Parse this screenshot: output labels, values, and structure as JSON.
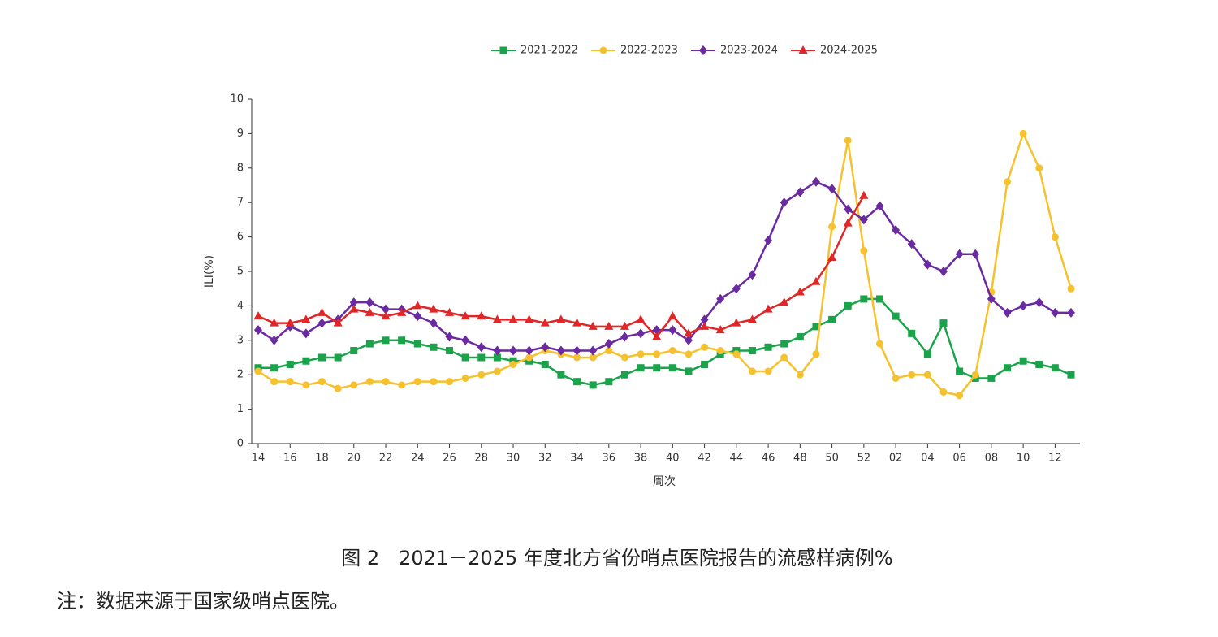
{
  "chart_data": {
    "type": "line",
    "x_label": "周次",
    "y_label": "ILI(%)",
    "categories": [
      "14",
      null,
      "16",
      null,
      "18",
      null,
      "20",
      null,
      "22",
      null,
      "24",
      null,
      "26",
      null,
      "28",
      null,
      "30",
      null,
      "32",
      null,
      "34",
      null,
      "36",
      null,
      "38",
      null,
      "40",
      null,
      "42",
      null,
      "44",
      null,
      "46",
      null,
      "48",
      null,
      "50",
      null,
      "52",
      null,
      "02",
      null,
      "04",
      null,
      "06",
      null,
      "08",
      null,
      "10",
      null,
      "12",
      null
    ],
    "ylim": [
      0,
      10
    ],
    "yticks": [
      0,
      1,
      2,
      3,
      4,
      5,
      6,
      7,
      8,
      9,
      10
    ],
    "grid": false,
    "legend": "top",
    "series": [
      {
        "name": "2021-2022",
        "color": "#1aa34a",
        "marker": "square",
        "values": [
          2.2,
          2.2,
          2.3,
          2.4,
          2.5,
          2.5,
          2.7,
          2.9,
          3.0,
          3.0,
          2.9,
          2.8,
          2.7,
          2.5,
          2.5,
          2.5,
          2.4,
          2.4,
          2.3,
          2.0,
          1.8,
          1.7,
          1.8,
          2.0,
          2.2,
          2.2,
          2.2,
          2.1,
          2.3,
          2.6,
          2.7,
          2.7,
          2.8,
          2.9,
          3.1,
          3.4,
          3.6,
          4.0,
          4.2,
          4.2,
          3.7,
          3.2,
          2.6,
          3.5,
          2.1,
          1.9,
          1.9,
          2.2,
          2.4,
          2.3,
          2.2,
          2.0
        ]
      },
      {
        "name": "2022-2023",
        "color": "#f5c12e",
        "marker": "circle",
        "values": [
          2.1,
          1.8,
          1.8,
          1.7,
          1.8,
          1.6,
          1.7,
          1.8,
          1.8,
          1.7,
          1.8,
          1.8,
          1.8,
          1.9,
          2.0,
          2.1,
          2.3,
          2.5,
          2.7,
          2.6,
          2.5,
          2.5,
          2.7,
          2.5,
          2.6,
          2.6,
          2.7,
          2.6,
          2.8,
          2.7,
          2.6,
          2.1,
          2.1,
          2.5,
          2.0,
          2.6,
          6.3,
          8.8,
          5.6,
          2.9,
          1.9,
          2.0,
          2.0,
          1.5,
          1.4,
          2.0,
          4.4,
          7.6,
          9.0,
          8.0,
          6.0,
          4.5
        ]
      },
      {
        "name": "2023-2024",
        "color": "#6a2aa0",
        "marker": "diamond",
        "values": [
          3.3,
          3.0,
          3.4,
          3.2,
          3.5,
          3.6,
          4.1,
          4.1,
          3.9,
          3.9,
          3.7,
          3.5,
          3.1,
          3.0,
          2.8,
          2.7,
          2.7,
          2.7,
          2.8,
          2.7,
          2.7,
          2.7,
          2.9,
          3.1,
          3.2,
          3.3,
          3.3,
          3.0,
          3.6,
          4.2,
          4.5,
          4.9,
          5.9,
          7.0,
          7.3,
          7.6,
          7.4,
          6.8,
          6.5,
          6.9,
          6.2,
          5.8,
          5.2,
          5.0,
          5.5,
          5.5,
          4.2,
          3.8,
          4.0,
          4.1,
          3.8,
          3.8
        ]
      },
      {
        "name": "2024-2025",
        "color": "#e02626",
        "marker": "triangle",
        "values": [
          3.7,
          3.5,
          3.5,
          3.6,
          3.8,
          3.5,
          3.9,
          3.8,
          3.7,
          3.8,
          4.0,
          3.9,
          3.8,
          3.7,
          3.7,
          3.6,
          3.6,
          3.6,
          3.5,
          3.6,
          3.5,
          3.4,
          3.4,
          3.4,
          3.6,
          3.1,
          3.7,
          3.2,
          3.4,
          3.3,
          3.5,
          3.6,
          3.9,
          4.1,
          4.4,
          4.7,
          5.4,
          6.4,
          7.2,
          null,
          null,
          null,
          null,
          null,
          null,
          null,
          null,
          null,
          null,
          null,
          null,
          null
        ]
      }
    ]
  },
  "caption": "图 2　2021－2025 年度北方省份哨点医院报告的流感样病例%",
  "note": "注：数据来源于国家级哨点医院。"
}
